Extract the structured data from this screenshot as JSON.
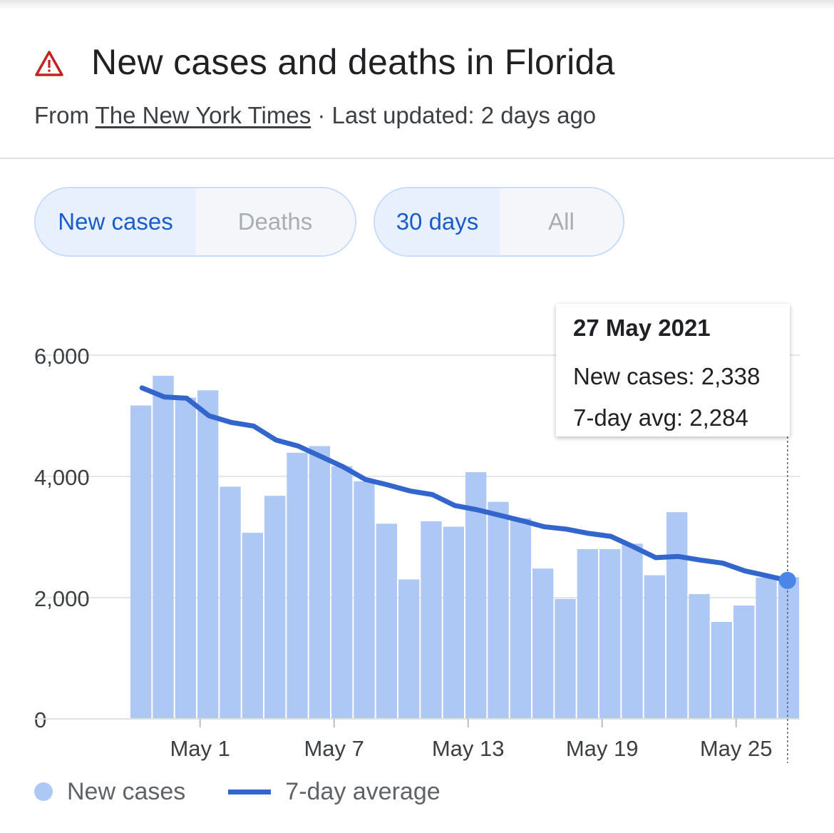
{
  "header": {
    "title": "New cases and deaths in Florida",
    "source_prefix": "From",
    "source_name": "The New York Times",
    "updated": "· Last updated: 2 days ago",
    "warning_icon": "warning-triangle-icon",
    "warning_color": "#c5221f"
  },
  "metric_toggle": {
    "options": [
      "New cases",
      "Deaths"
    ],
    "selected": "New cases"
  },
  "range_toggle": {
    "options": [
      "30 days",
      "All"
    ],
    "selected": "30 days"
  },
  "tooltip": {
    "date": "27 May 2021",
    "new_cases": "New cases: 2,338",
    "avg": "7-day avg: 2,284"
  },
  "legend": {
    "bars": "New cases",
    "line": "7-day average"
  },
  "colors": {
    "bar": "#aec8f5",
    "line": "#3366cc",
    "accent": "#1a5cc8"
  },
  "chart_data": {
    "type": "bar",
    "categories": [
      "Apr 28",
      "Apr 29",
      "Apr 30",
      "May 1",
      "May 2",
      "May 3",
      "May 4",
      "May 5",
      "May 6",
      "May 7",
      "May 8",
      "May 9",
      "May 10",
      "May 11",
      "May 12",
      "May 13",
      "May 14",
      "May 15",
      "May 16",
      "May 17",
      "May 18",
      "May 19",
      "May 20",
      "May 21",
      "May 22",
      "May 23",
      "May 24",
      "May 25",
      "May 26",
      "May 27"
    ],
    "series": [
      {
        "name": "New cases",
        "type": "bar",
        "values": [
          5170,
          5660,
          5300,
          5420,
          3830,
          3070,
          3680,
          4390,
          4500,
          4170,
          3920,
          3220,
          2300,
          3260,
          3170,
          4070,
          3580,
          3310,
          2480,
          1980,
          2800,
          2800,
          2890,
          2370,
          3410,
          2060,
          1600,
          1870,
          2330,
          2338
        ]
      },
      {
        "name": "7-day average",
        "type": "line",
        "values": [
          5460,
          5310,
          5290,
          5000,
          4890,
          4830,
          4600,
          4500,
          4330,
          4160,
          3950,
          3860,
          3760,
          3700,
          3520,
          3450,
          3360,
          3270,
          3170,
          3130,
          3060,
          3010,
          2840,
          2660,
          2680,
          2620,
          2570,
          2440,
          2360,
          2284
        ]
      }
    ],
    "x_tick_labels": [
      "May 1",
      "May 7",
      "May 13",
      "May 19",
      "May 25"
    ],
    "x_tick_indices": [
      3,
      9,
      15,
      21,
      27
    ],
    "y_ticks": [
      0,
      2000,
      4000,
      6000
    ],
    "y_tick_labels": [
      "0",
      "2,000",
      "4,000",
      "6,000"
    ],
    "ylim": [
      0,
      6000
    ],
    "highlight_index": 29,
    "legend_position": "bottom-left"
  }
}
